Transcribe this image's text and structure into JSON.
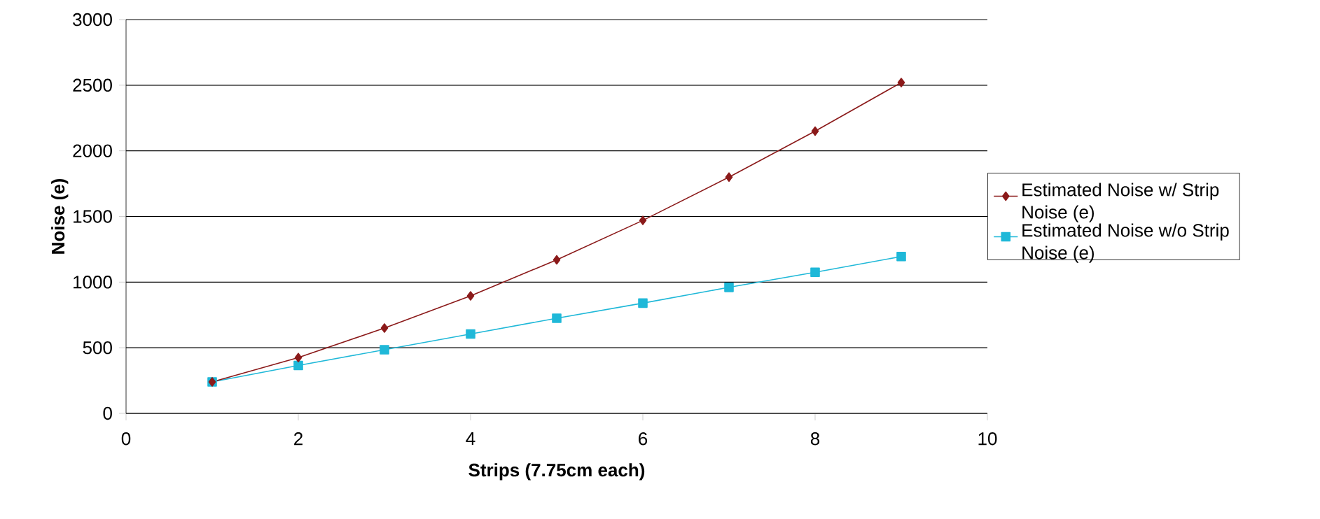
{
  "chart_data": {
    "type": "line",
    "xlabel": "Strips (7.75cm each)",
    "ylabel": "Noise (e)",
    "x": [
      1,
      2,
      3,
      4,
      5,
      6,
      7,
      8,
      9
    ],
    "series": [
      {
        "name": "Estimated Noise w/ Strip Noise (e)",
        "color": "#8b1a1a",
        "marker": "diamond",
        "values": [
          240,
          425,
          650,
          895,
          1170,
          1470,
          1800,
          2150,
          2520
        ]
      },
      {
        "name": "Estimated Noise w/o Strip Noise (e)",
        "color": "#1fb8d8",
        "marker": "square",
        "values": [
          240,
          365,
          485,
          605,
          725,
          840,
          960,
          1075,
          1195
        ]
      }
    ],
    "xlim": [
      0,
      10
    ],
    "ylim": [
      0,
      3000
    ],
    "xticks": [
      0,
      2,
      4,
      6,
      8,
      10
    ],
    "yticks": [
      0,
      500,
      1000,
      1500,
      2000,
      2500,
      3000
    ],
    "grid": "y",
    "legend": "right",
    "line_style": "solid"
  }
}
